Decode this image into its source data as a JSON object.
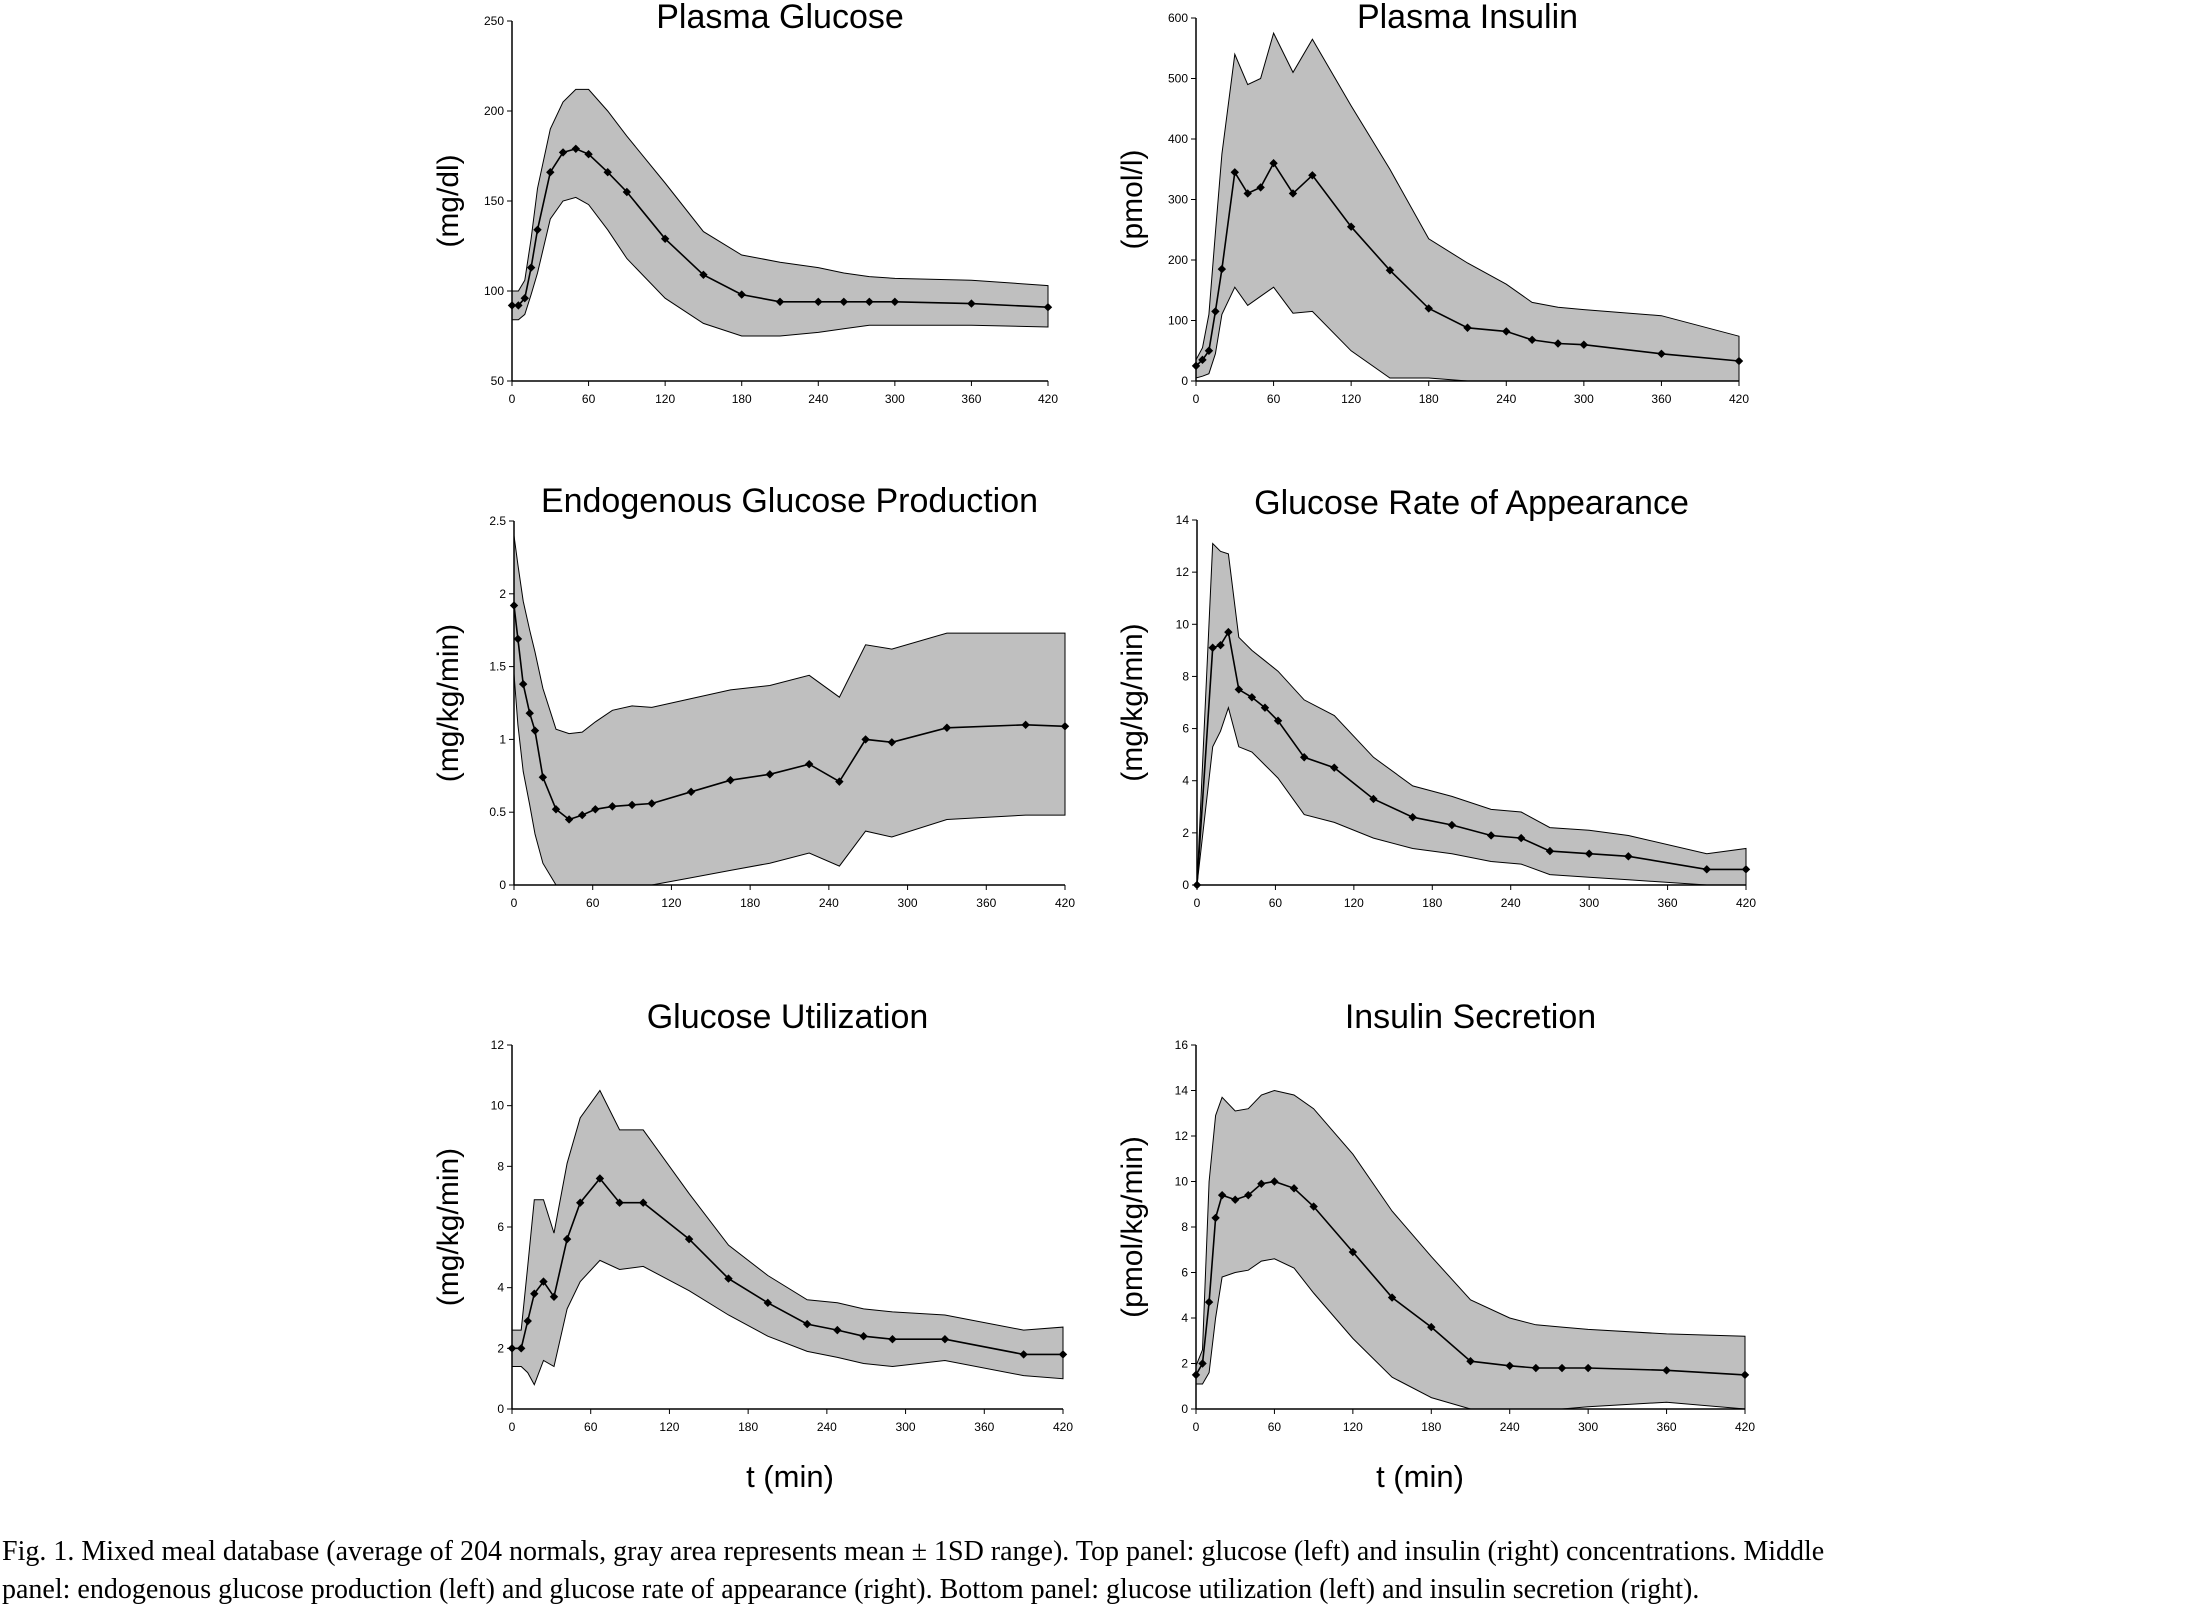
{
  "figure": {
    "xlabels": [
      "t (min)",
      "t (min)"
    ],
    "caption_line1": "Fig. 1.   Mixed meal database (average of 204 normals, gray area represents mean ± 1SD range). Top panel: glucose (left) and insulin (right) concentrations. Middle",
    "caption_line2": "panel: endogenous glucose production (left) and glucose rate of appearance (right). Bottom panel: glucose utilization (left) and insulin secretion (right)."
  },
  "colors": {
    "band": "#bfbfbf",
    "line": "#000000",
    "axis": "#000000"
  },
  "chart_data": [
    {
      "type": "line",
      "title": "Plasma Glucose",
      "ylabel": "(mg/dl)",
      "xlabel": "",
      "xlim": [
        0,
        420
      ],
      "ylim": [
        50,
        250
      ],
      "xticks": [
        0,
        60,
        120,
        180,
        240,
        300,
        360,
        420
      ],
      "yticks": [
        50,
        100,
        150,
        200,
        250
      ],
      "x": [
        0,
        5,
        10,
        15,
        20,
        30,
        40,
        50,
        60,
        75,
        90,
        120,
        150,
        180,
        210,
        240,
        260,
        280,
        300,
        360,
        420
      ],
      "series": [
        {
          "values": [
            92,
            92,
            96,
            113,
            134,
            166,
            177,
            179,
            176,
            166,
            155,
            129,
            109,
            98,
            94,
            94,
            94,
            94,
            94,
            93,
            91
          ]
        }
      ],
      "band": {
        "x": [
          0,
          5,
          10,
          15,
          20,
          30,
          40,
          50,
          60,
          75,
          90,
          120,
          150,
          180,
          210,
          240,
          260,
          280,
          300,
          360,
          420
        ],
        "upper": [
          100,
          100,
          106,
          129,
          157,
          190,
          205,
          212,
          212,
          200,
          186,
          160,
          133,
          120,
          116,
          113,
          110,
          108,
          107,
          106,
          103
        ],
        "lower": [
          84,
          84,
          87,
          98,
          110,
          140,
          150,
          152,
          148,
          134,
          118,
          96,
          82,
          75,
          75,
          77,
          79,
          81,
          81,
          81,
          80
        ]
      }
    },
    {
      "type": "line",
      "title": "Plasma Insulin",
      "ylabel": "(pmol/l)",
      "xlabel": "",
      "xlim": [
        0,
        420
      ],
      "ylim": [
        0,
        600
      ],
      "xticks": [
        0,
        60,
        120,
        180,
        240,
        300,
        360,
        420
      ],
      "yticks": [
        0,
        100,
        200,
        300,
        400,
        500,
        600
      ],
      "x": [
        0,
        5,
        10,
        15,
        20,
        30,
        40,
        50,
        60,
        75,
        90,
        120,
        150,
        180,
        210,
        240,
        260,
        280,
        300,
        360,
        420
      ],
      "series": [
        {
          "values": [
            25,
            35,
            50,
            115,
            185,
            345,
            310,
            320,
            360,
            310,
            340,
            255,
            183,
            120,
            88,
            82,
            68,
            62,
            60,
            45,
            33
          ]
        }
      ],
      "band": {
        "x": [
          0,
          5,
          10,
          15,
          20,
          30,
          40,
          50,
          60,
          75,
          90,
          120,
          150,
          180,
          210,
          240,
          260,
          280,
          300,
          360,
          420
        ],
        "upper": [
          35,
          55,
          110,
          245,
          375,
          540,
          490,
          500,
          575,
          510,
          565,
          455,
          350,
          235,
          195,
          160,
          130,
          122,
          118,
          108,
          74
        ],
        "lower": [
          5,
          8,
          12,
          45,
          110,
          155,
          125,
          140,
          155,
          112,
          115,
          50,
          5,
          5,
          0,
          0,
          0,
          0,
          0,
          0,
          0
        ]
      }
    },
    {
      "type": "line",
      "title": "Endogenous Glucose Production",
      "ylabel": "(mg/kg/min)",
      "xlabel": "",
      "xlim": [
        0,
        420
      ],
      "ylim": [
        0,
        2.5
      ],
      "xticks": [
        0,
        60,
        120,
        180,
        240,
        300,
        360,
        420
      ],
      "yticks": [
        0,
        0.5,
        1,
        1.5,
        2,
        2.5
      ],
      "ytick_labels": [
        "0",
        "0.5",
        "1",
        "1.5",
        "2",
        "2.5"
      ],
      "x": [
        0,
        3,
        7,
        12,
        16,
        22,
        32,
        42,
        52,
        62,
        75,
        90,
        105,
        135,
        165,
        195,
        225,
        248,
        268,
        288,
        330,
        390,
        420
      ],
      "series": [
        {
          "values": [
            1.92,
            1.69,
            1.38,
            1.18,
            1.06,
            0.74,
            0.52,
            0.45,
            0.48,
            0.52,
            0.54,
            0.55,
            0.56,
            0.64,
            0.72,
            0.76,
            0.83,
            0.71,
            1.0,
            0.98,
            1.08,
            1.1,
            1.09
          ]
        }
      ],
      "band": {
        "x": [
          0,
          3,
          7,
          12,
          16,
          22,
          32,
          42,
          52,
          62,
          75,
          90,
          105,
          135,
          165,
          195,
          225,
          248,
          268,
          288,
          330,
          390,
          420
        ],
        "upper": [
          2.4,
          2.2,
          1.95,
          1.75,
          1.6,
          1.35,
          1.07,
          1.04,
          1.05,
          1.12,
          1.2,
          1.23,
          1.22,
          1.28,
          1.34,
          1.37,
          1.44,
          1.29,
          1.65,
          1.62,
          1.73,
          1.73,
          1.73
        ],
        "lower": [
          1.45,
          1.1,
          0.78,
          0.55,
          0.35,
          0.15,
          -0.05,
          -0.1,
          -0.1,
          -0.1,
          -0.1,
          -0.08,
          -0.04,
          0.05,
          0.1,
          0.15,
          0.22,
          0.13,
          0.37,
          0.33,
          0.45,
          0.48,
          0.48
        ]
      }
    },
    {
      "type": "line",
      "title": "Glucose Rate of Appearance",
      "ylabel": "(mg/kg/min)",
      "xlabel": "",
      "xlim": [
        0,
        420
      ],
      "ylim": [
        0,
        14
      ],
      "xticks": [
        0,
        60,
        120,
        180,
        240,
        300,
        360,
        420
      ],
      "yticks": [
        0,
        2,
        4,
        6,
        8,
        10,
        12,
        14
      ],
      "x": [
        0,
        12,
        18,
        24,
        32,
        42,
        52,
        62,
        82,
        105,
        135,
        165,
        195,
        225,
        248,
        270,
        300,
        330,
        390,
        420
      ],
      "series": [
        {
          "values": [
            0,
            9.1,
            9.2,
            9.7,
            7.5,
            7.2,
            6.8,
            6.3,
            4.9,
            4.5,
            3.3,
            2.6,
            2.3,
            1.9,
            1.8,
            1.3,
            1.2,
            1.1,
            0.6,
            0.6
          ]
        }
      ],
      "band": {
        "x": [
          0,
          12,
          18,
          24,
          32,
          42,
          52,
          62,
          82,
          105,
          135,
          165,
          195,
          225,
          248,
          270,
          300,
          330,
          390,
          420
        ],
        "upper": [
          0,
          13.1,
          12.8,
          12.7,
          9.5,
          9.0,
          8.6,
          8.2,
          7.1,
          6.5,
          4.9,
          3.8,
          3.4,
          2.9,
          2.8,
          2.2,
          2.1,
          1.9,
          1.2,
          1.4
        ],
        "lower": [
          0,
          5.3,
          5.9,
          6.8,
          5.3,
          5.1,
          4.6,
          4.1,
          2.7,
          2.4,
          1.8,
          1.4,
          1.2,
          0.9,
          0.8,
          0.4,
          0.3,
          0.2,
          -0.1,
          -0.2
        ]
      }
    },
    {
      "type": "line",
      "title": "Glucose Utilization",
      "ylabel": "(mg/kg/min)",
      "xlabel": "",
      "xlim": [
        0,
        420
      ],
      "ylim": [
        0,
        12
      ],
      "xticks": [
        0,
        60,
        120,
        180,
        240,
        300,
        360,
        420
      ],
      "yticks": [
        0,
        2,
        4,
        6,
        8,
        10,
        12
      ],
      "x": [
        0,
        7,
        12,
        17,
        24,
        32,
        42,
        52,
        67,
        82,
        100,
        135,
        165,
        195,
        225,
        248,
        268,
        290,
        330,
        390,
        420
      ],
      "series": [
        {
          "values": [
            2.0,
            2.0,
            2.9,
            3.8,
            4.2,
            3.7,
            5.6,
            6.8,
            7.6,
            6.8,
            6.8,
            5.6,
            4.3,
            3.5,
            2.8,
            2.6,
            2.4,
            2.3,
            2.3,
            1.8,
            1.8
          ]
        }
      ],
      "band": {
        "x": [
          0,
          7,
          12,
          17,
          24,
          32,
          42,
          52,
          67,
          82,
          100,
          135,
          165,
          195,
          225,
          248,
          268,
          290,
          330,
          390,
          420
        ],
        "upper": [
          2.6,
          2.6,
          4.7,
          6.9,
          6.9,
          5.8,
          8.1,
          9.6,
          10.5,
          9.2,
          9.2,
          7.1,
          5.4,
          4.4,
          3.6,
          3.5,
          3.3,
          3.2,
          3.1,
          2.6,
          2.7
        ],
        "lower": [
          1.4,
          1.4,
          1.2,
          0.8,
          1.6,
          1.4,
          3.3,
          4.2,
          4.9,
          4.6,
          4.7,
          3.9,
          3.1,
          2.4,
          1.9,
          1.7,
          1.5,
          1.4,
          1.6,
          1.1,
          1.0
        ]
      }
    },
    {
      "type": "line",
      "title": "Insulin Secretion",
      "ylabel": "(pmol/kg/min)",
      "xlabel": "",
      "xlim": [
        0,
        420
      ],
      "ylim": [
        0,
        16
      ],
      "xticks": [
        0,
        60,
        120,
        180,
        240,
        300,
        360,
        420
      ],
      "yticks": [
        0,
        2,
        4,
        6,
        8,
        10,
        12,
        14,
        16
      ],
      "x": [
        0,
        5,
        10,
        15,
        20,
        30,
        40,
        50,
        60,
        75,
        90,
        120,
        150,
        180,
        210,
        240,
        260,
        280,
        300,
        360,
        420
      ],
      "series": [
        {
          "values": [
            1.5,
            2.0,
            4.7,
            8.4,
            9.4,
            9.2,
            9.4,
            9.9,
            10.0,
            9.7,
            8.9,
            6.9,
            4.9,
            3.6,
            2.1,
            1.9,
            1.8,
            1.8,
            1.8,
            1.7,
            1.5
          ]
        }
      ],
      "band": {
        "x": [
          0,
          5,
          10,
          15,
          20,
          30,
          40,
          50,
          60,
          75,
          90,
          120,
          150,
          180,
          210,
          240,
          260,
          280,
          300,
          360,
          420
        ],
        "upper": [
          1.9,
          2.6,
          10.0,
          12.9,
          13.7,
          13.1,
          13.2,
          13.8,
          14.0,
          13.8,
          13.2,
          11.2,
          8.7,
          6.7,
          4.8,
          4.0,
          3.7,
          3.6,
          3.5,
          3.3,
          3.2
        ],
        "lower": [
          1.1,
          1.1,
          1.6,
          4.0,
          5.8,
          6.0,
          6.1,
          6.5,
          6.6,
          6.2,
          5.1,
          3.1,
          1.4,
          0.5,
          -0.2,
          -0.2,
          -0.1,
          0.0,
          0.1,
          0.3,
          0.0
        ]
      }
    }
  ]
}
